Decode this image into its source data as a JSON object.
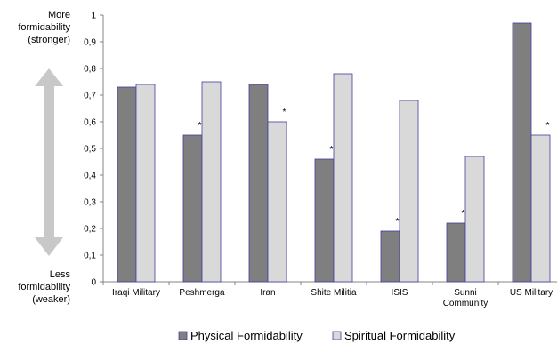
{
  "chart_data": {
    "type": "bar",
    "categories": [
      "Iraqi Military",
      "Peshmerga",
      "Iran",
      "Shite Militia",
      "ISIS",
      "Sunni Community",
      "US Military"
    ],
    "category_lines": [
      [
        "Iraqi Military"
      ],
      [
        "Peshmerga"
      ],
      [
        "Iran"
      ],
      [
        "Shite Militia"
      ],
      [
        "ISIS"
      ],
      [
        "Sunni",
        "Community"
      ],
      [
        "US Military"
      ]
    ],
    "series": [
      {
        "name": "Physical Formidability",
        "color": "#7f7f7f",
        "values": [
          0.73,
          0.55,
          0.74,
          0.46,
          0.19,
          0.22,
          0.97
        ],
        "starred": [
          false,
          true,
          false,
          true,
          true,
          true,
          false
        ]
      },
      {
        "name": "Spiritual Formidability",
        "color": "#d9d9d9",
        "values": [
          0.74,
          0.75,
          0.6,
          0.78,
          0.68,
          0.47,
          0.55
        ],
        "starred": [
          false,
          false,
          true,
          false,
          false,
          false,
          true
        ]
      }
    ],
    "ylim": [
      0,
      1
    ],
    "yticks": [
      "0",
      "0,1",
      "0,2",
      "0,3",
      "0,4",
      "0,5",
      "0,6",
      "0,7",
      "0,8",
      "0,9",
      "1"
    ],
    "star_symbol": "*",
    "top_label": [
      "More",
      "formidability",
      "(stronger)"
    ],
    "bottom_label": [
      "Less",
      "formidability",
      "(weaker)"
    ],
    "arrow_color": "#c8c8c8",
    "bar_outline_color": "#3f3f9f",
    "grid": false,
    "legend_position": "bottom"
  }
}
